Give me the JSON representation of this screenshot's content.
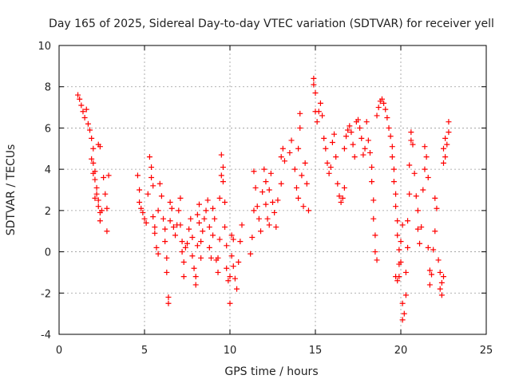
{
  "chart_data": {
    "type": "scatter",
    "title": "Day 165 of 2025, Sidereal Day-to-day VTEC variation (SDTVAR) for receiver yell",
    "xlabel": "GPS time / hours",
    "ylabel": "SDTVAR / TECUs",
    "xlim": [
      0,
      25
    ],
    "ylim": [
      -4,
      10
    ],
    "xticks": [
      "0",
      "5",
      "10",
      "15",
      "20",
      "25"
    ],
    "yticks": [
      "-4",
      "-2",
      "0",
      "2",
      "4",
      "6",
      "8",
      "10"
    ],
    "grid": true,
    "marker": "+",
    "color": "#ff0000",
    "series": [
      {
        "name": "SDTVAR",
        "points": [
          [
            1.1,
            7.6
          ],
          [
            1.2,
            7.4
          ],
          [
            1.3,
            7.1
          ],
          [
            1.4,
            6.8
          ],
          [
            1.5,
            6.5
          ],
          [
            1.6,
            6.9
          ],
          [
            1.7,
            6.2
          ],
          [
            1.8,
            5.9
          ],
          [
            1.9,
            5.5
          ],
          [
            2.0,
            5.0
          ],
          [
            2.0,
            4.3
          ],
          [
            2.1,
            3.9
          ],
          [
            2.1,
            3.5
          ],
          [
            2.2,
            3.1
          ],
          [
            2.2,
            2.8
          ],
          [
            2.3,
            2.5
          ],
          [
            2.3,
            2.2
          ],
          [
            2.4,
            1.9
          ],
          [
            2.4,
            1.5
          ],
          [
            2.5,
            2.0
          ],
          [
            2.3,
            5.2
          ],
          [
            2.4,
            5.1
          ],
          [
            2.6,
            3.6
          ],
          [
            2.7,
            2.8
          ],
          [
            2.8,
            1.0
          ],
          [
            2.8,
            2.1
          ],
          [
            2.9,
            3.7
          ],
          [
            1.9,
            4.5
          ],
          [
            2.0,
            3.8
          ],
          [
            2.1,
            2.6
          ],
          [
            4.6,
            3.7
          ],
          [
            4.7,
            3.0
          ],
          [
            4.7,
            2.4
          ],
          [
            4.8,
            2.1
          ],
          [
            4.9,
            1.9
          ],
          [
            5.0,
            1.6
          ],
          [
            5.1,
            1.4
          ],
          [
            5.2,
            2.8
          ],
          [
            5.3,
            4.6
          ],
          [
            5.4,
            4.1
          ],
          [
            5.4,
            3.6
          ],
          [
            5.5,
            3.2
          ],
          [
            5.5,
            1.7
          ],
          [
            5.6,
            1.2
          ],
          [
            5.6,
            0.9
          ],
          [
            5.7,
            0.2
          ],
          [
            5.8,
            -0.1
          ],
          [
            5.8,
            2.0
          ],
          [
            5.9,
            3.3
          ],
          [
            6.0,
            2.7
          ],
          [
            6.1,
            1.6
          ],
          [
            6.2,
            1.1
          ],
          [
            6.2,
            0.5
          ],
          [
            6.3,
            -0.3
          ],
          [
            6.3,
            -1.0
          ],
          [
            6.4,
            -2.2
          ],
          [
            6.4,
            -2.5
          ],
          [
            6.5,
            1.5
          ],
          [
            6.5,
            2.4
          ],
          [
            6.6,
            2.1
          ],
          [
            6.7,
            1.2
          ],
          [
            6.8,
            0.8
          ],
          [
            6.9,
            1.3
          ],
          [
            7.0,
            2.0
          ],
          [
            7.1,
            2.6
          ],
          [
            7.1,
            1.3
          ],
          [
            7.2,
            0.5
          ],
          [
            7.2,
            0.0
          ],
          [
            7.3,
            -0.5
          ],
          [
            7.3,
            -1.2
          ],
          [
            7.4,
            0.2
          ],
          [
            7.5,
            0.4
          ],
          [
            7.6,
            1.1
          ],
          [
            7.7,
            1.6
          ],
          [
            7.8,
            0.7
          ],
          [
            7.8,
            -0.2
          ],
          [
            7.9,
            -0.8
          ],
          [
            8.0,
            -1.6
          ],
          [
            8.0,
            -1.2
          ],
          [
            8.1,
            0.3
          ],
          [
            8.1,
            1.8
          ],
          [
            8.2,
            2.3
          ],
          [
            8.2,
            1.4
          ],
          [
            8.3,
            0.5
          ],
          [
            8.3,
            -0.3
          ],
          [
            8.4,
            1.0
          ],
          [
            8.5,
            1.6
          ],
          [
            8.6,
            2.0
          ],
          [
            8.7,
            2.5
          ],
          [
            8.8,
            1.2
          ],
          [
            8.8,
            0.2
          ],
          [
            8.9,
            -0.3
          ],
          [
            9.0,
            0.8
          ],
          [
            9.0,
            2.1
          ],
          [
            9.1,
            1.6
          ],
          [
            9.2,
            -0.4
          ],
          [
            9.3,
            -1.0
          ],
          [
            9.3,
            -0.3
          ],
          [
            9.4,
            0.6
          ],
          [
            9.4,
            2.6
          ],
          [
            9.5,
            3.7
          ],
          [
            9.5,
            4.7
          ],
          [
            9.6,
            4.1
          ],
          [
            9.6,
            3.4
          ],
          [
            9.7,
            2.4
          ],
          [
            9.7,
            1.2
          ],
          [
            9.8,
            0.3
          ],
          [
            9.8,
            -0.8
          ],
          [
            9.9,
            -1.4
          ],
          [
            10.0,
            -2.5
          ],
          [
            10.0,
            -1.2
          ],
          [
            10.1,
            -0.2
          ],
          [
            10.1,
            0.8
          ],
          [
            10.2,
            0.6
          ],
          [
            10.2,
            -0.7
          ],
          [
            10.3,
            -1.3
          ],
          [
            10.4,
            -1.8
          ],
          [
            10.5,
            -0.5
          ],
          [
            10.6,
            0.5
          ],
          [
            10.7,
            1.3
          ],
          [
            11.2,
            -0.1
          ],
          [
            11.3,
            0.7
          ],
          [
            11.4,
            2.0
          ],
          [
            11.4,
            3.9
          ],
          [
            11.5,
            3.1
          ],
          [
            11.6,
            2.2
          ],
          [
            11.7,
            1.6
          ],
          [
            11.8,
            1.0
          ],
          [
            11.9,
            2.9
          ],
          [
            12.0,
            4.0
          ],
          [
            12.1,
            3.4
          ],
          [
            12.1,
            2.3
          ],
          [
            12.2,
            1.6
          ],
          [
            12.3,
            1.3
          ],
          [
            12.3,
            3.0
          ],
          [
            12.4,
            3.8
          ],
          [
            12.5,
            2.4
          ],
          [
            12.6,
            1.9
          ],
          [
            12.7,
            1.2
          ],
          [
            12.8,
            2.5
          ],
          [
            13.0,
            3.3
          ],
          [
            13.0,
            4.6
          ],
          [
            13.1,
            5.0
          ],
          [
            13.2,
            4.4
          ],
          [
            13.5,
            4.8
          ],
          [
            13.6,
            5.4
          ],
          [
            13.8,
            4.0
          ],
          [
            13.9,
            3.1
          ],
          [
            14.0,
            2.6
          ],
          [
            14.0,
            5.0
          ],
          [
            14.1,
            6.0
          ],
          [
            14.1,
            6.7
          ],
          [
            14.2,
            3.7
          ],
          [
            14.3,
            2.2
          ],
          [
            14.4,
            4.3
          ],
          [
            14.5,
            3.3
          ],
          [
            14.6,
            2.0
          ],
          [
            14.9,
            8.4
          ],
          [
            14.9,
            8.1
          ],
          [
            15.0,
            7.7
          ],
          [
            15.0,
            6.8
          ],
          [
            15.1,
            6.3
          ],
          [
            15.2,
            6.8
          ],
          [
            15.3,
            7.2
          ],
          [
            15.4,
            6.6
          ],
          [
            15.5,
            5.5
          ],
          [
            15.6,
            5.0
          ],
          [
            15.7,
            4.3
          ],
          [
            15.8,
            3.8
          ],
          [
            15.9,
            4.1
          ],
          [
            16.0,
            5.3
          ],
          [
            16.1,
            5.7
          ],
          [
            16.2,
            4.6
          ],
          [
            16.3,
            3.3
          ],
          [
            16.4,
            2.7
          ],
          [
            16.5,
            2.4
          ],
          [
            16.6,
            2.6
          ],
          [
            16.7,
            3.1
          ],
          [
            16.7,
            5.0
          ],
          [
            16.8,
            5.6
          ],
          [
            16.9,
            5.9
          ],
          [
            17.0,
            6.1
          ],
          [
            17.1,
            5.8
          ],
          [
            17.2,
            5.2
          ],
          [
            17.3,
            4.6
          ],
          [
            17.4,
            6.3
          ],
          [
            17.5,
            6.4
          ],
          [
            17.6,
            6.0
          ],
          [
            17.7,
            5.5
          ],
          [
            17.8,
            4.7
          ],
          [
            17.9,
            5.0
          ],
          [
            18.0,
            6.3
          ],
          [
            18.1,
            5.4
          ],
          [
            18.2,
            4.8
          ],
          [
            18.3,
            4.1
          ],
          [
            18.3,
            3.4
          ],
          [
            18.4,
            2.5
          ],
          [
            18.4,
            1.6
          ],
          [
            18.5,
            0.8
          ],
          [
            18.5,
            0.0
          ],
          [
            18.6,
            -0.4
          ],
          [
            18.6,
            6.6
          ],
          [
            18.7,
            7.0
          ],
          [
            18.8,
            7.3
          ],
          [
            18.9,
            7.4
          ],
          [
            19.0,
            7.2
          ],
          [
            19.1,
            6.9
          ],
          [
            19.2,
            6.5
          ],
          [
            19.3,
            6.0
          ],
          [
            19.4,
            5.6
          ],
          [
            19.5,
            5.1
          ],
          [
            19.5,
            4.6
          ],
          [
            19.6,
            4.0
          ],
          [
            19.6,
            3.4
          ],
          [
            19.7,
            2.8
          ],
          [
            19.7,
            2.2
          ],
          [
            19.8,
            1.5
          ],
          [
            19.8,
            0.8
          ],
          [
            19.9,
            0.1
          ],
          [
            19.9,
            -0.6
          ],
          [
            19.7,
            -1.2
          ],
          [
            19.8,
            -1.4
          ],
          [
            19.9,
            -1.2
          ],
          [
            20.0,
            -0.5
          ],
          [
            20.0,
            0.5
          ],
          [
            20.1,
            1.3
          ],
          [
            20.1,
            -2.5
          ],
          [
            20.1,
            -3.3
          ],
          [
            20.2,
            -3.0
          ],
          [
            20.3,
            -2.1
          ],
          [
            20.3,
            -1.0
          ],
          [
            20.4,
            0.2
          ],
          [
            20.4,
            1.5
          ],
          [
            20.5,
            2.8
          ],
          [
            20.5,
            4.2
          ],
          [
            20.6,
            5.4
          ],
          [
            20.6,
            5.8
          ],
          [
            20.7,
            5.2
          ],
          [
            20.8,
            3.8
          ],
          [
            20.9,
            2.7
          ],
          [
            21.0,
            2.0
          ],
          [
            21.0,
            1.1
          ],
          [
            21.1,
            0.4
          ],
          [
            21.2,
            1.2
          ],
          [
            21.3,
            3.0
          ],
          [
            21.4,
            4.0
          ],
          [
            21.4,
            5.1
          ],
          [
            21.5,
            4.6
          ],
          [
            21.6,
            3.6
          ],
          [
            21.6,
            0.2
          ],
          [
            21.7,
            -0.9
          ],
          [
            21.7,
            -1.6
          ],
          [
            21.8,
            -1.1
          ],
          [
            21.9,
            0.1
          ],
          [
            22.0,
            1.0
          ],
          [
            22.0,
            2.6
          ],
          [
            22.1,
            2.1
          ],
          [
            22.2,
            -0.4
          ],
          [
            22.3,
            -1.0
          ],
          [
            22.3,
            -1.8
          ],
          [
            22.4,
            -2.1
          ],
          [
            22.4,
            -1.5
          ],
          [
            22.5,
            -1.2
          ],
          [
            22.5,
            4.3
          ],
          [
            22.5,
            5.0
          ],
          [
            22.6,
            5.5
          ],
          [
            22.6,
            4.6
          ],
          [
            22.7,
            5.2
          ],
          [
            22.8,
            5.8
          ],
          [
            22.8,
            6.3
          ]
        ]
      }
    ]
  }
}
